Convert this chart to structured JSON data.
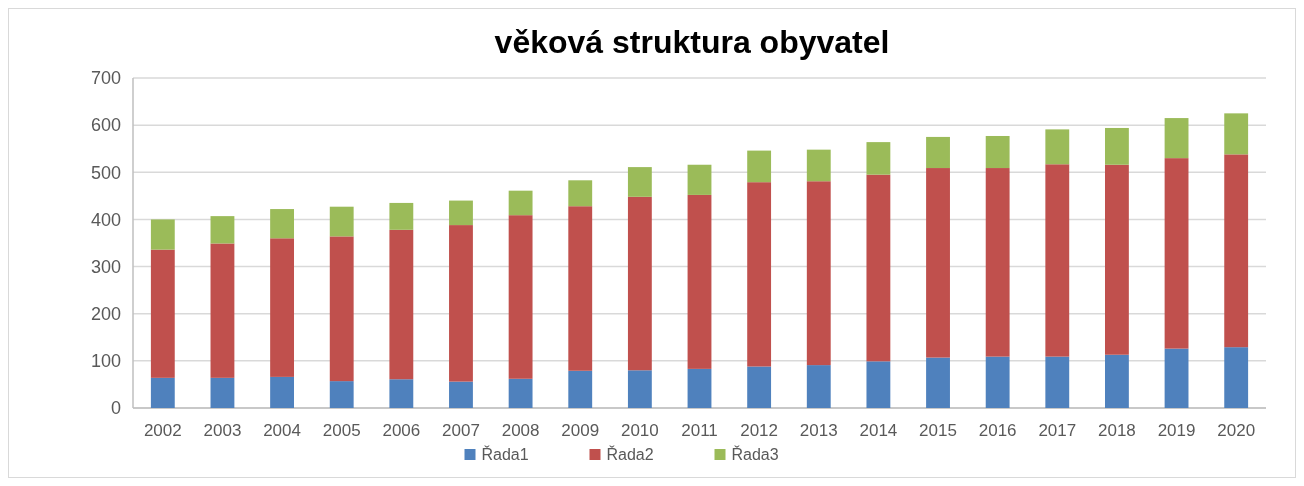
{
  "chart_data": {
    "type": "bar",
    "title": "věková struktura obyvatel",
    "stacked": true,
    "categories": [
      "2002",
      "2003",
      "2004",
      "2005",
      "2006",
      "2007",
      "2008",
      "2009",
      "2010",
      "2011",
      "2012",
      "2013",
      "2014",
      "2015",
      "2016",
      "2017",
      "2018",
      "2019",
      "2020"
    ],
    "series": [
      {
        "name": "Řada1",
        "color": "#4f81bd",
        "values": [
          64,
          64,
          66,
          57,
          61,
          56,
          62,
          79,
          80,
          83,
          88,
          91,
          99,
          107,
          109,
          109,
          113,
          126,
          129
        ]
      },
      {
        "name": "Řada2",
        "color": "#c0504d",
        "values": [
          272,
          285,
          294,
          307,
          317,
          332,
          347,
          349,
          368,
          369,
          391,
          390,
          396,
          402,
          400,
          408,
          403,
          404,
          409
        ]
      },
      {
        "name": "Řada3",
        "color": "#9bbb59",
        "values": [
          64,
          58,
          62,
          63,
          57,
          52,
          52,
          55,
          63,
          64,
          67,
          67,
          69,
          66,
          68,
          74,
          78,
          85,
          87
        ]
      }
    ],
    "ylim": [
      0,
      700
    ],
    "yticks": [
      0,
      100,
      200,
      300,
      400,
      500,
      600,
      700
    ],
    "grid": "y",
    "legend": "bottom"
  }
}
